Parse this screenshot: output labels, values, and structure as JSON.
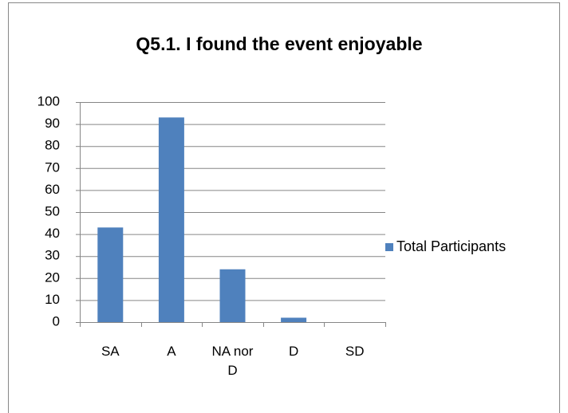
{
  "chart_data": {
    "type": "bar",
    "title": "Q5.1. I found the event enjoyable",
    "categories": [
      "SA",
      "A",
      "NA nor D",
      "D",
      "SD"
    ],
    "series": [
      {
        "name": "Total Participants",
        "color": "#4f81bd",
        "values": [
          43,
          93,
          24,
          2,
          0
        ]
      }
    ],
    "ylim": [
      0,
      100
    ],
    "yticks": [
      0,
      10,
      20,
      30,
      40,
      50,
      60,
      70,
      80,
      90,
      100
    ],
    "grid": true,
    "legend": "right"
  }
}
